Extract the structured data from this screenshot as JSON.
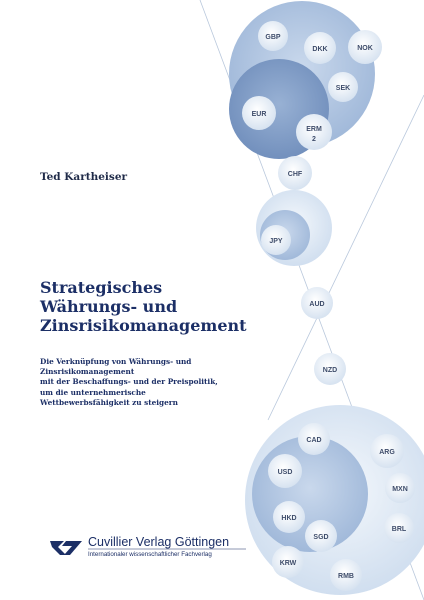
{
  "author": "Ted Kartheiser",
  "title": {
    "line1": "Strategisches",
    "line2": "Währungs- und",
    "line3": "Zinsrisikomanagement"
  },
  "subtitle": {
    "line1": "Die Verknüpfung von Währungs- und",
    "line2": "Zinsrisikomanagement",
    "line3": "mit der Beschaffungs- und der Preispolitik,",
    "line4": "um die unternehmerische",
    "line5": "Wettbewerbsfähigkeit zu steigern"
  },
  "currencies": {
    "gbp": "GBP",
    "dkk": "DKK",
    "nok": "NOK",
    "sek": "SEK",
    "eur": "EUR",
    "erm_line1": "ERM",
    "erm_line2": "2",
    "chf": "CHF",
    "jpy": "JPY",
    "aud": "AUD",
    "nzd": "NZD",
    "cad": "CAD",
    "arg": "ARG",
    "usd": "USD",
    "mxn": "MXN",
    "hkd": "HKD",
    "sgd": "SGD",
    "brl": "BRL",
    "krw": "KRW",
    "rmb": "RMB"
  },
  "publisher": {
    "name": "Cuvillier Verlag Göttingen",
    "tagline": "Internationaler wissenschaftlicher Fachverlag"
  },
  "colors": {
    "title": "#1c2f66",
    "bubble_light": "#dde7f3",
    "bubble_mid": "#a9c0dd",
    "bubble_dark": "#7f9cc4",
    "bubble_outer": "#c4d5ea"
  }
}
